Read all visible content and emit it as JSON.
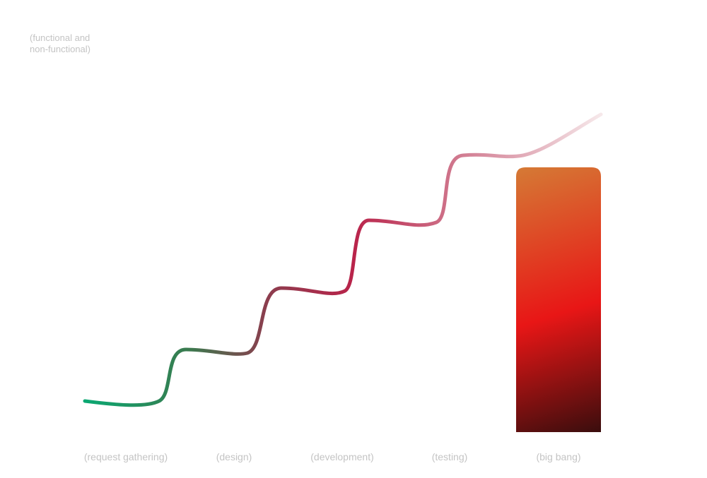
{
  "y_note": {
    "line1": "(functional and",
    "line2": "non-functional)"
  },
  "phases": [
    "(request gathering)",
    "(design)",
    "(development)",
    "(testing)",
    "(big bang)"
  ],
  "colors": {
    "curve_start": "#0aa872",
    "curve_mid1": "#3a7a4e",
    "curve_mid2": "#8b3e4e",
    "curve_mid3": "#b9234a",
    "curve_mid4": "#d0788e",
    "curve_end": "#f6e8ea",
    "bar_top": "#d57a35",
    "bar_mid": "#e81616",
    "bar_bottom": "#3a0d0d",
    "label_text": "#c4c4c4"
  }
}
